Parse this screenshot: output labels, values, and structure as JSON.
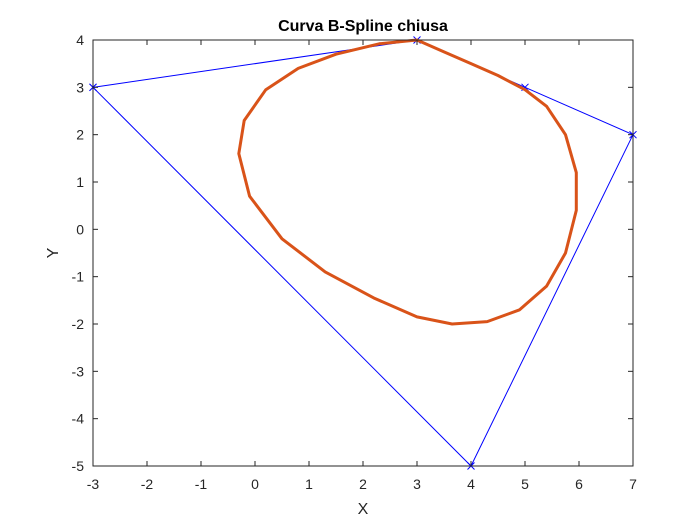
{
  "chart_data": {
    "type": "line",
    "title": "Curva B-Spline chiusa",
    "xlabel": "X",
    "ylabel": "Y",
    "xlim": [
      -3,
      7
    ],
    "ylim": [
      -5,
      4
    ],
    "xticks": [
      -3,
      -2,
      -1,
      0,
      1,
      2,
      3,
      4,
      5,
      6,
      7
    ],
    "yticks": [
      -5,
      -4,
      -3,
      -2,
      -1,
      0,
      1,
      2,
      3,
      4
    ],
    "grid": false,
    "box": true,
    "series": [
      {
        "role": "control-polygon",
        "color": "#0000FF",
        "marker": "x",
        "points": [
          [
            -3,
            3
          ],
          [
            3,
            4
          ],
          [
            5,
            3
          ],
          [
            7,
            2
          ],
          [
            4,
            -5
          ],
          [
            -3,
            3
          ]
        ]
      },
      {
        "role": "b-spline-curve",
        "color": "#D95319",
        "marker": "none",
        "points": [
          [
            3.0,
            4.0
          ],
          [
            3.5,
            3.75
          ],
          [
            4.0,
            3.5
          ],
          [
            4.5,
            3.25
          ],
          [
            5.0,
            2.95
          ],
          [
            5.4,
            2.6
          ],
          [
            5.75,
            2.0
          ],
          [
            5.95,
            1.2
          ],
          [
            5.95,
            0.4
          ],
          [
            5.75,
            -0.5
          ],
          [
            5.4,
            -1.2
          ],
          [
            4.9,
            -1.7
          ],
          [
            4.3,
            -1.95
          ],
          [
            3.65,
            -2.0
          ],
          [
            3.0,
            -1.85
          ],
          [
            2.2,
            -1.45
          ],
          [
            1.3,
            -0.9
          ],
          [
            0.5,
            -0.2
          ],
          [
            -0.1,
            0.7
          ],
          [
            -0.3,
            1.6
          ],
          [
            -0.2,
            2.3
          ],
          [
            0.2,
            2.95
          ],
          [
            0.8,
            3.4
          ],
          [
            1.5,
            3.7
          ],
          [
            2.3,
            3.92
          ],
          [
            3.0,
            4.0
          ]
        ]
      }
    ]
  }
}
